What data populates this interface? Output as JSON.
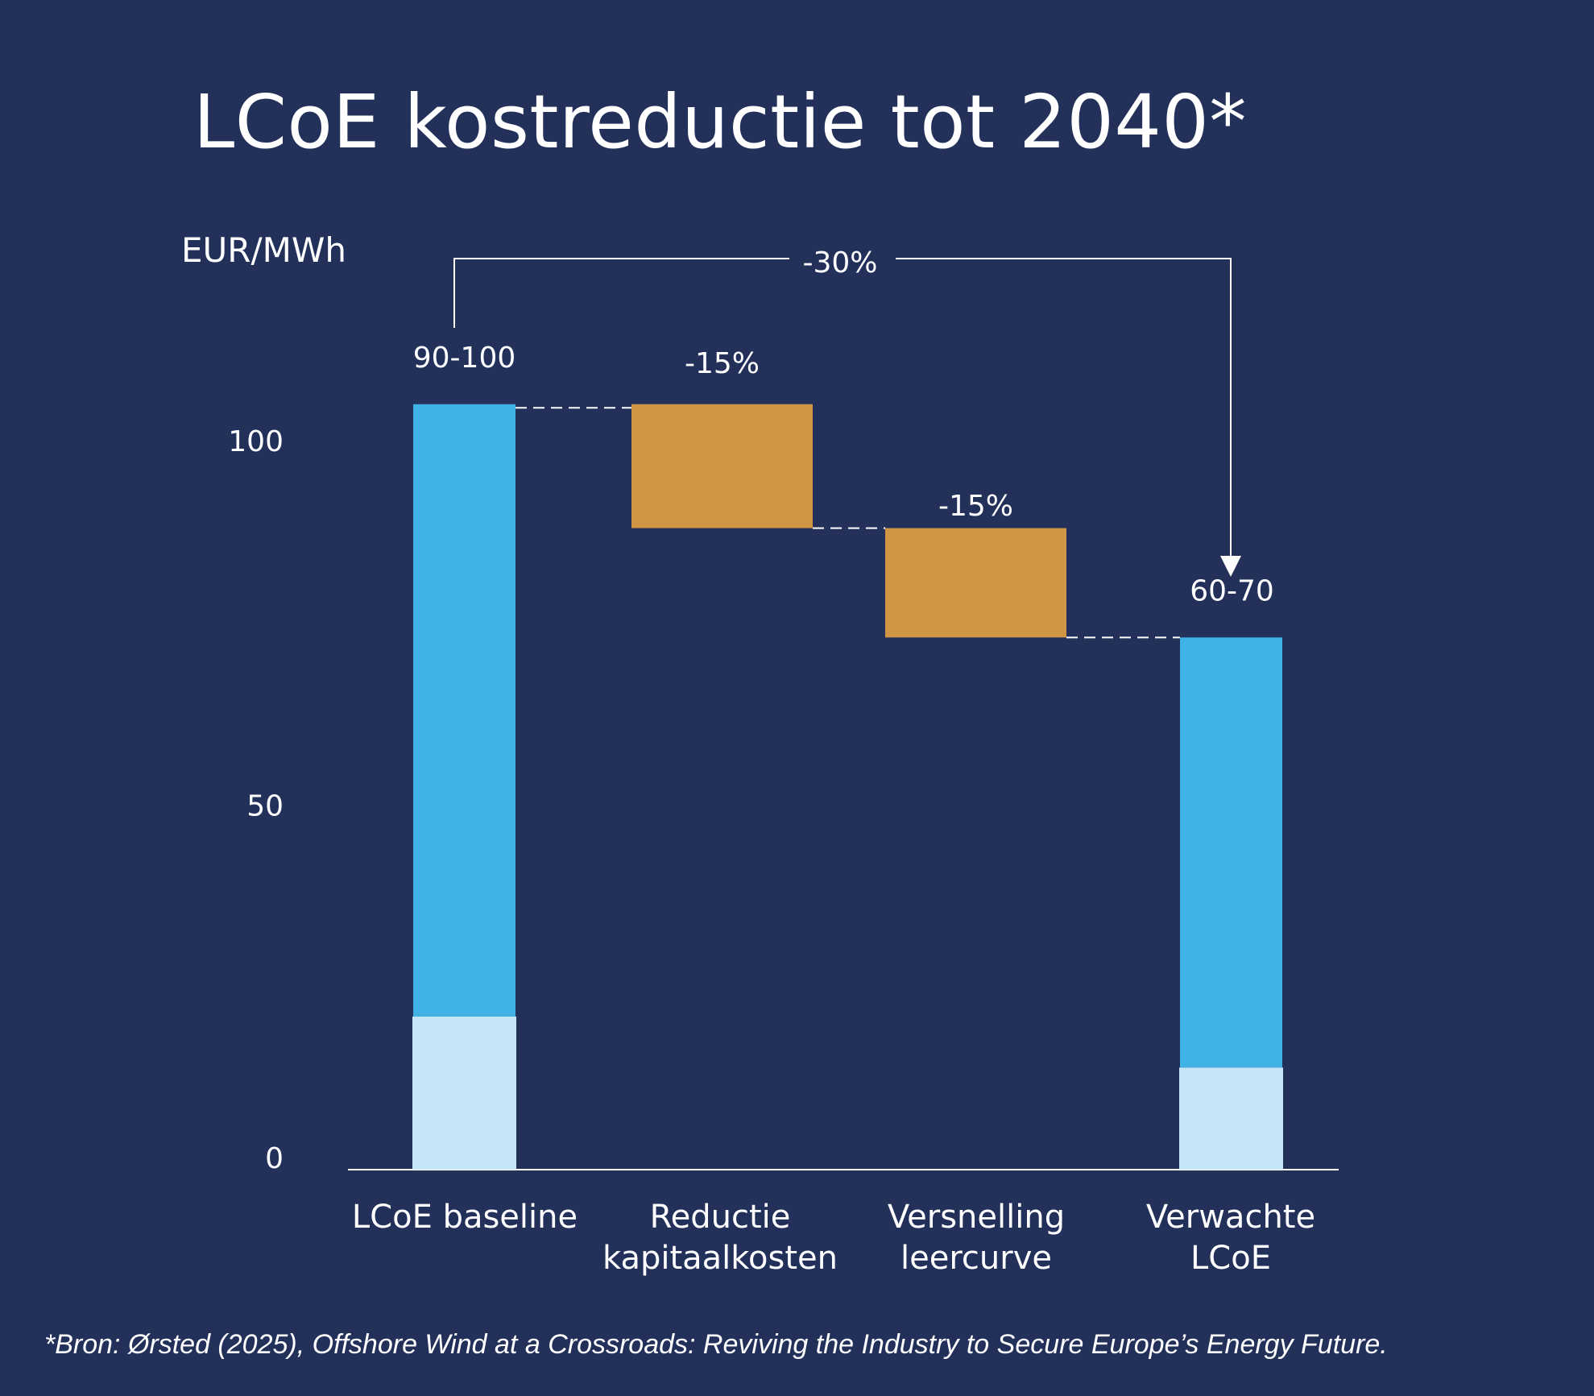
{
  "title": "LCoE kostreductie tot 2040*",
  "footnote": "*Bron: Ørsted (2025), Offshore Wind at a Crossroads: Reviving the Industry to Secure Europe’s Energy Future.",
  "colors": {
    "background": "#22305a",
    "bar_dark": "#41b2e6",
    "bar_light": "#c5e6f7",
    "reduction": "#d19546",
    "line": "#ffffff"
  },
  "chart_data": {
    "type": "waterfall",
    "ylabel": "EUR/MWh",
    "ylim": [
      0,
      104
    ],
    "yticks": [
      0,
      50,
      100
    ],
    "categories": [
      {
        "line1": "LCoE baseline",
        "line2": ""
      },
      {
        "line1": "Reductie",
        "line2": "kapitaalkosten"
      },
      {
        "line1": "Versnelling",
        "line2": "leercurve"
      },
      {
        "line1": "Verwachte",
        "line2": "LCoE"
      }
    ],
    "bars": [
      {
        "kind": "total",
        "base": 0,
        "top": 105,
        "light_top": 21,
        "label": "90-100"
      },
      {
        "kind": "delta",
        "base": 88,
        "top": 105,
        "label": "-15%"
      },
      {
        "kind": "delta",
        "base": 73,
        "top": 88,
        "label": "-15%"
      },
      {
        "kind": "total",
        "base": 0,
        "top": 73,
        "light_top": 14,
        "label": "60-70"
      }
    ],
    "overall_change": "-30%"
  }
}
